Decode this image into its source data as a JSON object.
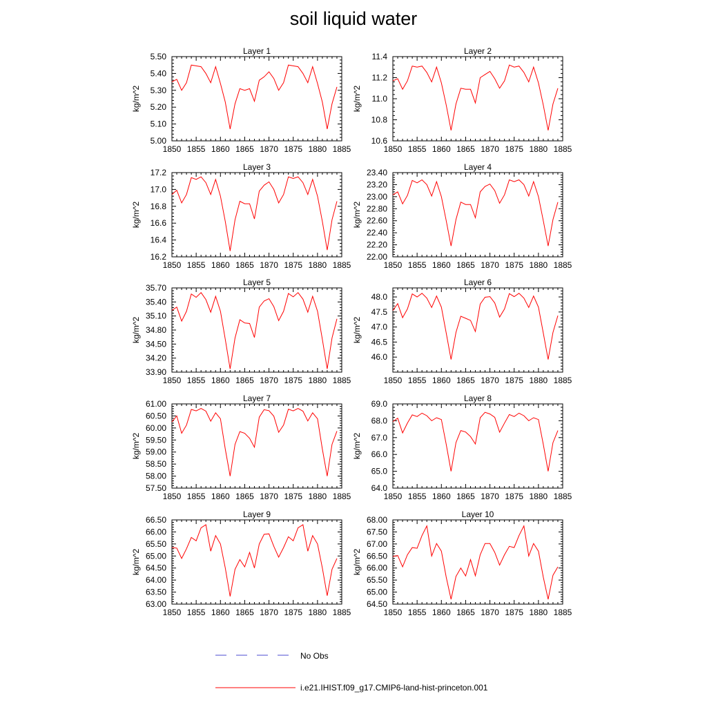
{
  "title": "soil liquid water",
  "chart_data": [
    {
      "type": "line",
      "title": "Layer 1",
      "ylabel": "kg/m^2",
      "x": [
        1850,
        1851,
        1852,
        1853,
        1854,
        1855,
        1856,
        1857,
        1858,
        1859,
        1860,
        1861,
        1862,
        1863,
        1864,
        1865,
        1866,
        1867,
        1868,
        1869,
        1870,
        1871,
        1872,
        1873,
        1874,
        1875,
        1876,
        1877,
        1878,
        1879,
        1880,
        1881,
        1882,
        1883,
        1884
      ],
      "xlim": [
        1850,
        1885
      ],
      "xticks": [
        "1850",
        "1855",
        "1860",
        "1865",
        "1870",
        "1875",
        "1880",
        "1885"
      ],
      "ylim": [
        5.0,
        5.5
      ],
      "yticks": [
        "5.00",
        "5.10",
        "5.20",
        "5.30",
        "5.40",
        "5.50"
      ],
      "series": [
        {
          "name": "i.e21.IHIST.f09_g17.CMIP6-land-hist-princeton.001",
          "values": [
            5.35,
            5.365,
            5.3,
            5.345,
            5.45,
            5.445,
            5.44,
            5.4,
            5.345,
            5.44,
            5.34,
            5.23,
            5.07,
            5.22,
            5.31,
            5.3,
            5.31,
            5.235,
            5.36,
            5.38,
            5.41,
            5.37,
            5.3,
            5.345,
            5.45,
            5.445,
            5.44,
            5.4,
            5.345,
            5.44,
            5.34,
            5.23,
            5.07,
            5.22,
            5.32
          ]
        }
      ]
    },
    {
      "type": "line",
      "title": "Layer 2",
      "ylabel": "kg/m^2",
      "x": [
        1850,
        1851,
        1852,
        1853,
        1854,
        1855,
        1856,
        1857,
        1858,
        1859,
        1860,
        1861,
        1862,
        1863,
        1864,
        1865,
        1866,
        1867,
        1868,
        1869,
        1870,
        1871,
        1872,
        1873,
        1874,
        1875,
        1876,
        1877,
        1878,
        1879,
        1880,
        1881,
        1882,
        1883,
        1884
      ],
      "xlim": [
        1850,
        1885
      ],
      "xticks": [
        "1850",
        "1855",
        "1860",
        "1865",
        "1870",
        "1875",
        "1880",
        "1885"
      ],
      "ylim": [
        10.6,
        11.4
      ],
      "yticks": [
        "10.6",
        "10.8",
        "11.0",
        "11.2",
        "11.4"
      ],
      "series": [
        {
          "name": "i.e21.IHIST.f09_g17.CMIP6-land-hist-princeton.001",
          "values": [
            11.17,
            11.19,
            11.09,
            11.17,
            11.31,
            11.3,
            11.31,
            11.25,
            11.16,
            11.3,
            11.15,
            10.94,
            10.7,
            10.95,
            11.1,
            11.09,
            11.09,
            10.96,
            11.2,
            11.23,
            11.26,
            11.19,
            11.1,
            11.17,
            11.32,
            11.3,
            11.31,
            11.25,
            11.16,
            11.3,
            11.15,
            10.94,
            10.7,
            10.95,
            11.1
          ]
        }
      ]
    },
    {
      "type": "line",
      "title": "Layer 3",
      "ylabel": "kg/m^2",
      "x": [
        1850,
        1851,
        1852,
        1853,
        1854,
        1855,
        1856,
        1857,
        1858,
        1859,
        1860,
        1861,
        1862,
        1863,
        1864,
        1865,
        1866,
        1867,
        1868,
        1869,
        1870,
        1871,
        1872,
        1873,
        1874,
        1875,
        1876,
        1877,
        1878,
        1879,
        1880,
        1881,
        1882,
        1883,
        1884
      ],
      "xlim": [
        1850,
        1885
      ],
      "xticks": [
        "1850",
        "1855",
        "1860",
        "1865",
        "1870",
        "1875",
        "1880",
        "1885"
      ],
      "ylim": [
        16.2,
        17.2
      ],
      "yticks": [
        "16.2",
        "16.4",
        "16.6",
        "16.8",
        "17.0",
        "17.2"
      ],
      "series": [
        {
          "name": "i.e21.IHIST.f09_g17.CMIP6-land-hist-princeton.001",
          "values": [
            16.94,
            16.99,
            16.84,
            16.94,
            17.14,
            17.12,
            17.15,
            17.08,
            16.94,
            17.12,
            16.92,
            16.62,
            16.27,
            16.64,
            16.86,
            16.83,
            16.83,
            16.65,
            16.98,
            17.05,
            17.09,
            17.0,
            16.84,
            16.94,
            17.15,
            17.13,
            17.15,
            17.08,
            16.94,
            17.12,
            16.92,
            16.62,
            16.28,
            16.64,
            16.86
          ]
        }
      ]
    },
    {
      "type": "line",
      "title": "Layer 4",
      "ylabel": "kg/m^2",
      "x": [
        1850,
        1851,
        1852,
        1853,
        1854,
        1855,
        1856,
        1857,
        1858,
        1859,
        1860,
        1861,
        1862,
        1863,
        1864,
        1865,
        1866,
        1867,
        1868,
        1869,
        1870,
        1871,
        1872,
        1873,
        1874,
        1875,
        1876,
        1877,
        1878,
        1879,
        1880,
        1881,
        1882,
        1883,
        1884
      ],
      "xlim": [
        1850,
        1885
      ],
      "xticks": [
        "1850",
        "1855",
        "1860",
        "1865",
        "1870",
        "1875",
        "1880",
        "1885"
      ],
      "ylim": [
        22.0,
        23.4
      ],
      "yticks": [
        "22.00",
        "22.20",
        "22.40",
        "22.60",
        "22.80",
        "23.00",
        "23.20",
        "23.40"
      ],
      "series": [
        {
          "name": "i.e21.IHIST.f09_g17.CMIP6-land-hist-princeton.001",
          "values": [
            23.03,
            23.08,
            22.88,
            23.02,
            23.27,
            23.23,
            23.28,
            23.2,
            23.01,
            23.25,
            23.0,
            22.6,
            22.18,
            22.62,
            22.91,
            22.87,
            22.87,
            22.65,
            23.08,
            23.17,
            23.21,
            23.1,
            22.89,
            23.03,
            23.28,
            23.25,
            23.28,
            23.2,
            23.01,
            23.25,
            23.0,
            22.6,
            22.18,
            22.62,
            22.91
          ]
        }
      ]
    },
    {
      "type": "line",
      "title": "Layer 5",
      "ylabel": "kg/m^2",
      "x": [
        1850,
        1851,
        1852,
        1853,
        1854,
        1855,
        1856,
        1857,
        1858,
        1859,
        1860,
        1861,
        1862,
        1863,
        1864,
        1865,
        1866,
        1867,
        1868,
        1869,
        1870,
        1871,
        1872,
        1873,
        1874,
        1875,
        1876,
        1877,
        1878,
        1879,
        1880,
        1881,
        1882,
        1883,
        1884
      ],
      "xlim": [
        1850,
        1885
      ],
      "xticks": [
        "1850",
        "1855",
        "1860",
        "1865",
        "1870",
        "1875",
        "1880",
        "1885"
      ],
      "ylim": [
        33.9,
        35.7
      ],
      "yticks": [
        "33.90",
        "34.20",
        "34.50",
        "34.80",
        "35.10",
        "35.40",
        "35.70"
      ],
      "series": [
        {
          "name": "i.e21.IHIST.f09_g17.CMIP6-land-hist-princeton.001",
          "values": [
            35.22,
            35.29,
            34.99,
            35.2,
            35.57,
            35.5,
            35.6,
            35.45,
            35.18,
            35.52,
            35.2,
            34.6,
            33.97,
            34.63,
            35.02,
            34.95,
            34.94,
            34.64,
            35.29,
            35.42,
            35.47,
            35.3,
            35.0,
            35.2,
            35.58,
            35.51,
            35.6,
            35.46,
            35.18,
            35.52,
            35.2,
            34.6,
            33.97,
            34.63,
            35.04
          ]
        }
      ]
    },
    {
      "type": "line",
      "title": "Layer 6",
      "ylabel": "kg/m^2",
      "x": [
        1850,
        1851,
        1852,
        1853,
        1854,
        1855,
        1856,
        1857,
        1858,
        1859,
        1860,
        1861,
        1862,
        1863,
        1864,
        1865,
        1866,
        1867,
        1868,
        1869,
        1870,
        1871,
        1872,
        1873,
        1874,
        1875,
        1876,
        1877,
        1878,
        1879,
        1880,
        1881,
        1882,
        1883,
        1884
      ],
      "xlim": [
        1850,
        1885
      ],
      "xticks": [
        "1850",
        "1855",
        "1860",
        "1865",
        "1870",
        "1875",
        "1880",
        "1885"
      ],
      "ylim": [
        45.5,
        48.3
      ],
      "yticks": [
        "46.0",
        "46.5",
        "47.0",
        "47.5",
        "48.0"
      ],
      "series": [
        {
          "name": "i.e21.IHIST.f09_g17.CMIP6-land-hist-princeton.001",
          "values": [
            47.55,
            47.78,
            47.31,
            47.6,
            48.1,
            48.0,
            48.12,
            47.96,
            47.65,
            48.03,
            47.66,
            46.8,
            45.92,
            46.82,
            47.36,
            47.29,
            47.22,
            46.85,
            47.76,
            47.99,
            48.01,
            47.8,
            47.33,
            47.6,
            48.11,
            48.01,
            48.12,
            47.96,
            47.65,
            48.03,
            47.66,
            46.8,
            45.92,
            46.82,
            47.38
          ]
        }
      ]
    },
    {
      "type": "line",
      "title": "Layer 7",
      "ylabel": "kg/m^2",
      "x": [
        1850,
        1851,
        1852,
        1853,
        1854,
        1855,
        1856,
        1857,
        1858,
        1859,
        1860,
        1861,
        1862,
        1863,
        1864,
        1865,
        1866,
        1867,
        1868,
        1869,
        1870,
        1871,
        1872,
        1873,
        1874,
        1875,
        1876,
        1877,
        1878,
        1879,
        1880,
        1881,
        1882,
        1883,
        1884
      ],
      "xlim": [
        1850,
        1885
      ],
      "xticks": [
        "1850",
        "1855",
        "1860",
        "1865",
        "1870",
        "1875",
        "1880",
        "1885"
      ],
      "ylim": [
        57.5,
        61.0
      ],
      "yticks": [
        "57.50",
        "58.00",
        "58.50",
        "59.00",
        "59.50",
        "60.00",
        "60.50",
        "61.00"
      ],
      "series": [
        {
          "name": "i.e21.IHIST.f09_g17.CMIP6-land-hist-princeton.001",
          "values": [
            60.25,
            60.5,
            59.78,
            60.12,
            60.77,
            60.71,
            60.81,
            60.7,
            60.28,
            60.63,
            60.38,
            59.12,
            58.0,
            59.32,
            59.85,
            59.78,
            59.57,
            59.2,
            60.45,
            60.76,
            60.72,
            60.49,
            59.82,
            60.12,
            60.78,
            60.71,
            60.81,
            60.7,
            60.29,
            60.63,
            60.38,
            59.12,
            58.0,
            59.32,
            59.87
          ]
        }
      ]
    },
    {
      "type": "line",
      "title": "Layer 8",
      "ylabel": "kg/m^2",
      "x": [
        1850,
        1851,
        1852,
        1853,
        1854,
        1855,
        1856,
        1857,
        1858,
        1859,
        1860,
        1861,
        1862,
        1863,
        1864,
        1865,
        1866,
        1867,
        1868,
        1869,
        1870,
        1871,
        1872,
        1873,
        1874,
        1875,
        1876,
        1877,
        1878,
        1879,
        1880,
        1881,
        1882,
        1883,
        1884
      ],
      "xlim": [
        1850,
        1885
      ],
      "xticks": [
        "1850",
        "1855",
        "1860",
        "1865",
        "1870",
        "1875",
        "1880",
        "1885"
      ],
      "ylim": [
        64.0,
        69.0
      ],
      "yticks": [
        "64.0",
        "65.0",
        "66.0",
        "67.0",
        "68.0",
        "69.0"
      ],
      "series": [
        {
          "name": "i.e21.IHIST.f09_g17.CMIP6-land-hist-princeton.001",
          "values": [
            67.95,
            68.15,
            67.28,
            67.86,
            68.35,
            68.25,
            68.45,
            68.3,
            68.0,
            68.18,
            68.07,
            66.6,
            65.0,
            66.7,
            67.42,
            67.33,
            67.06,
            66.62,
            68.18,
            68.5,
            68.4,
            68.2,
            67.32,
            67.86,
            68.37,
            68.25,
            68.45,
            68.3,
            68.0,
            68.18,
            68.07,
            66.6,
            65.0,
            66.7,
            67.42
          ]
        }
      ]
    },
    {
      "type": "line",
      "title": "Layer 9",
      "ylabel": "kg/m^2",
      "x": [
        1850,
        1851,
        1852,
        1853,
        1854,
        1855,
        1856,
        1857,
        1858,
        1859,
        1860,
        1861,
        1862,
        1863,
        1864,
        1865,
        1866,
        1867,
        1868,
        1869,
        1870,
        1871,
        1872,
        1873,
        1874,
        1875,
        1876,
        1877,
        1878,
        1879,
        1880,
        1881,
        1882,
        1883,
        1884
      ],
      "xlim": [
        1850,
        1885
      ],
      "xticks": [
        "1850",
        "1855",
        "1860",
        "1865",
        "1870",
        "1875",
        "1880",
        "1885"
      ],
      "ylim": [
        63.0,
        66.5
      ],
      "yticks": [
        "63.00",
        "63.50",
        "64.00",
        "64.50",
        "65.00",
        "65.50",
        "66.00",
        "66.50"
      ],
      "series": [
        {
          "name": "i.e21.IHIST.f09_g17.CMIP6-land-hist-princeton.001",
          "values": [
            65.35,
            65.33,
            64.9,
            65.3,
            65.77,
            65.63,
            66.17,
            66.3,
            65.2,
            65.85,
            65.5,
            64.5,
            63.32,
            64.45,
            64.85,
            64.55,
            65.15,
            64.5,
            65.5,
            65.9,
            65.92,
            65.4,
            64.95,
            65.35,
            65.8,
            65.63,
            66.17,
            66.3,
            65.2,
            65.85,
            65.5,
            64.5,
            63.35,
            64.45,
            64.9
          ]
        }
      ]
    },
    {
      "type": "line",
      "title": "Layer 10",
      "ylabel": "kg/m^2",
      "x": [
        1850,
        1851,
        1852,
        1853,
        1854,
        1855,
        1856,
        1857,
        1858,
        1859,
        1860,
        1861,
        1862,
        1863,
        1864,
        1865,
        1866,
        1867,
        1868,
        1869,
        1870,
        1871,
        1872,
        1873,
        1874,
        1875,
        1876,
        1877,
        1878,
        1879,
        1880,
        1881,
        1882,
        1883,
        1884
      ],
      "xlim": [
        1850,
        1885
      ],
      "xticks": [
        "1850",
        "1855",
        "1860",
        "1865",
        "1870",
        "1875",
        "1880",
        "1885"
      ],
      "ylim": [
        64.5,
        68.0
      ],
      "yticks": [
        "64.50",
        "65.00",
        "65.50",
        "66.00",
        "66.50",
        "67.00",
        "67.50",
        "68.00"
      ],
      "series": [
        {
          "name": "i.e21.IHIST.f09_g17.CMIP6-land-hist-princeton.001",
          "values": [
            66.48,
            66.52,
            66.05,
            66.55,
            66.85,
            66.82,
            67.35,
            67.75,
            66.5,
            67.02,
            66.7,
            65.62,
            64.7,
            65.65,
            66.0,
            65.67,
            66.35,
            65.68,
            66.55,
            67.02,
            67.02,
            66.65,
            66.12,
            66.55,
            66.9,
            66.85,
            67.35,
            67.75,
            66.5,
            67.02,
            66.7,
            65.62,
            64.7,
            65.7,
            66.05
          ]
        }
      ]
    }
  ],
  "legend": {
    "entries": [
      {
        "label": "No Obs",
        "style": "dashed",
        "color": "#4a4ad0"
      },
      {
        "label": "i.e21.IHIST.f09_g17.CMIP6-land-hist-princeton.001",
        "style": "solid",
        "color": "#ff0000"
      }
    ]
  }
}
